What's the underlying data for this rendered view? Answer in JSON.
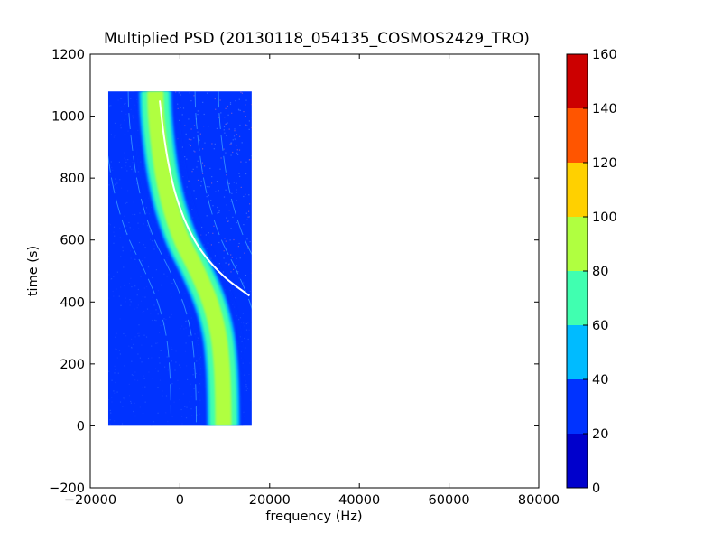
{
  "chart_data": {
    "type": "heatmap",
    "title": "Multiplied PSD (20130118_054135_COSMOS2429_TRO)",
    "xlabel": "frequency (Hz)",
    "ylabel": "time (s)",
    "xlim": [
      -20000,
      80000
    ],
    "ylim": [
      -200,
      1200
    ],
    "x_ticks": [
      -20000,
      0,
      20000,
      40000,
      60000,
      80000
    ],
    "x_tick_labels": [
      "−20000",
      "0",
      "20000",
      "40000",
      "60000",
      "80000"
    ],
    "y_ticks": [
      -200,
      0,
      200,
      400,
      600,
      800,
      1000,
      1200
    ],
    "y_tick_labels": [
      "−200",
      "0",
      "200",
      "400",
      "600",
      "800",
      "1000",
      "1200"
    ],
    "data_extent": {
      "freq": [
        -16000,
        16000
      ],
      "time": [
        0,
        1080
      ]
    },
    "background_level": 30,
    "main_trace": {
      "level": 90,
      "points": [
        {
          "time": 1080,
          "freq": -5500
        },
        {
          "time": 1000,
          "freq": -5300
        },
        {
          "time": 900,
          "freq": -4600
        },
        {
          "time": 800,
          "freq": -3600
        },
        {
          "time": 700,
          "freq": -2000
        },
        {
          "time": 600,
          "freq": 400
        },
        {
          "time": 500,
          "freq": 3800
        },
        {
          "time": 400,
          "freq": 6700
        },
        {
          "time": 300,
          "freq": 8500
        },
        {
          "time": 200,
          "freq": 9300
        },
        {
          "time": 100,
          "freq": 9600
        },
        {
          "time": 0,
          "freq": 9700
        }
      ]
    },
    "fit_curve": {
      "color": "#ffffff",
      "points": [
        {
          "time": 1050,
          "freq": -4500
        },
        {
          "time": 950,
          "freq": -3700
        },
        {
          "time": 850,
          "freq": -2600
        },
        {
          "time": 750,
          "freq": -1000
        },
        {
          "time": 650,
          "freq": 1500
        },
        {
          "time": 560,
          "freq": 5000
        },
        {
          "time": 480,
          "freq": 10000
        },
        {
          "time": 420,
          "freq": 15500
        }
      ]
    },
    "colorbar": {
      "min": 0,
      "max": 160,
      "ticks": [
        0,
        20,
        40,
        60,
        80,
        100,
        120,
        140,
        160
      ],
      "colors": [
        "#0000cc",
        "#0033ff",
        "#00bbff",
        "#40ffb0",
        "#b0ff40",
        "#ffd000",
        "#ff5500",
        "#cc0000"
      ]
    },
    "grid": false
  }
}
